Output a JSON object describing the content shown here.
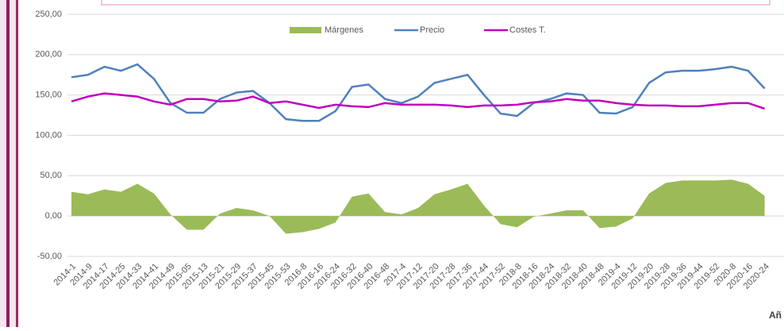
{
  "chart_data": {
    "type": "area-line",
    "x_label": "Añ",
    "categories": [
      "2014-1",
      "2014-9",
      "2014-17",
      "2014-25",
      "2014-33",
      "2014-41",
      "2014-49",
      "2015-05",
      "2015-13",
      "2015-21",
      "2015-29",
      "2015-37",
      "2015-45",
      "2015-53",
      "2016-8",
      "2016-16",
      "2016-24",
      "2016-32",
      "2016-40",
      "2016-48",
      "2017-4",
      "2017-12",
      "2017-20",
      "2017-28",
      "2017-36",
      "2017-44",
      "2017-52",
      "2018-8",
      "2018-16",
      "2018-24",
      "2018-32",
      "2018-40",
      "2018-48",
      "2019-4",
      "2019-12",
      "2019-20",
      "2019-28",
      "2019-36",
      "2019-44",
      "2019-52",
      "2020-8",
      "2020-16",
      "2020-24"
    ],
    "series": [
      {
        "name": "Márgenes",
        "kind": "area",
        "color": "#9bbb59",
        "values": [
          30,
          27,
          33,
          30,
          40,
          28,
          2,
          -17,
          -17,
          3,
          10,
          7,
          0,
          -22,
          -20,
          -16,
          -8,
          24,
          28,
          5,
          2,
          10,
          27,
          33,
          40,
          13,
          -10,
          -14,
          -1,
          3,
          7,
          7,
          -15,
          -13,
          -3,
          28,
          41,
          44,
          44,
          44,
          45,
          40,
          25
        ]
      },
      {
        "name": "Precio",
        "kind": "line",
        "color": "#4f81bd",
        "values": [
          172,
          175,
          185,
          180,
          188,
          170,
          140,
          128,
          128,
          145,
          153,
          155,
          140,
          120,
          118,
          118,
          130,
          160,
          163,
          145,
          140,
          148,
          165,
          170,
          175,
          150,
          127,
          124,
          140,
          145,
          152,
          150,
          128,
          127,
          135,
          165,
          178,
          180,
          180,
          182,
          185,
          180,
          158
        ]
      },
      {
        "name": "Costes T.",
        "kind": "line",
        "color": "#c000c0",
        "values": [
          142,
          148,
          152,
          150,
          148,
          142,
          138,
          145,
          145,
          142,
          143,
          148,
          140,
          142,
          138,
          134,
          138,
          136,
          135,
          140,
          138,
          138,
          138,
          137,
          135,
          137,
          137,
          138,
          141,
          142,
          145,
          143,
          143,
          140,
          138,
          137,
          137,
          136,
          136,
          138,
          140,
          140,
          133
        ]
      }
    ],
    "ylim": [
      -50,
      250
    ],
    "yticks": [
      {
        "value": -50,
        "label": "-50,00"
      },
      {
        "value": 0,
        "label": "0,00"
      },
      {
        "value": 50,
        "label": "50,00"
      },
      {
        "value": 100,
        "label": "100,00"
      },
      {
        "value": 150,
        "label": "150,00"
      },
      {
        "value": 200,
        "label": "200,00"
      },
      {
        "value": 250,
        "label": "250,00"
      }
    ],
    "grid": true
  }
}
